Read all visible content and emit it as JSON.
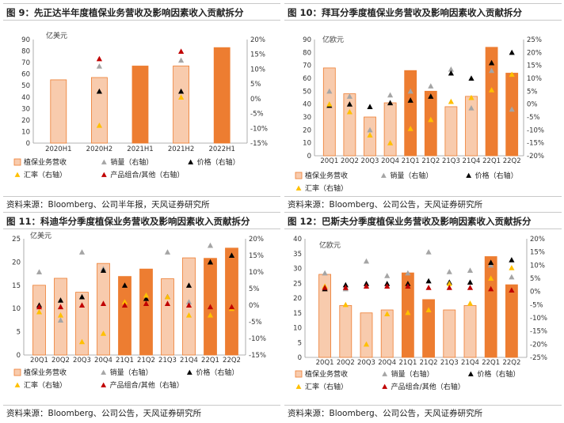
{
  "colors": {
    "light_bar": "#F8CBAD",
    "light_bar_stroke": "#ED7D31",
    "dark_bar": "#ED7D31",
    "volume": "#A5A5A5",
    "price": "#000000",
    "fx": "#FFC000",
    "mix": "#C00000"
  },
  "panels": [
    {
      "title": "图 9：先正达半年度植保业务营收及影响因素收入贡献拆分",
      "source": "资料来源：Bloomberg、公司半年报，天风证券研究所",
      "chart_data": {
        "type": "bar",
        "unit": "亿美元",
        "categories": [
          "2020H1",
          "2020H2",
          "2021H1",
          "2021H2",
          "2022H1"
        ],
        "values": [
          55,
          57,
          67,
          67,
          83
        ],
        "bar_shade": [
          "light",
          "light",
          "dark",
          "light",
          "dark"
        ],
        "ylim": [
          0,
          90
        ],
        "yticks": [
          "0",
          "10",
          "20",
          "30",
          "40",
          "50",
          "60",
          "70",
          "80",
          "90"
        ],
        "y2lim": [
          -15,
          20
        ],
        "y2ticks": [
          "-15%",
          "-10%",
          "-5%",
          "0%",
          "5%",
          "10%",
          "15%",
          "20%"
        ],
        "series": [
          {
            "key": "volume",
            "name": "销量（右轴）",
            "values": [
              null,
              11,
              null,
              13,
              null
            ]
          },
          {
            "key": "price",
            "name": "价格（右轴）",
            "values": [
              null,
              2.5,
              null,
              2.5,
              null
            ]
          },
          {
            "key": "fx",
            "name": "汇率（右轴）",
            "values": [
              null,
              -9,
              null,
              0.5,
              null
            ]
          },
          {
            "key": "mix",
            "name": "产品组合/其他（右轴）",
            "values": [
              null,
              13.5,
              null,
              16,
              null
            ]
          }
        ],
        "legend": [
          {
            "key": "bar",
            "name": "植保业务营收"
          },
          {
            "key": "volume",
            "name": "销量（右轴）"
          },
          {
            "key": "price",
            "name": "价格（右轴）"
          },
          {
            "key": "fx",
            "name": "汇率（右轴）"
          },
          {
            "key": "mix",
            "name": "产品组合/其他（右轴）"
          }
        ]
      }
    },
    {
      "title": "图 10：拜耳分季度植保业务营收及影响因素收入贡献拆分",
      "source": "资料来源：Bloomberg、公司公告，天风证券研究所",
      "chart_data": {
        "type": "bar",
        "unit": "亿欧元",
        "categories": [
          "20Q1",
          "20Q2",
          "20Q3",
          "20Q4",
          "21Q1",
          "21Q2",
          "21Q3",
          "21Q4",
          "22Q1",
          "22Q2"
        ],
        "values": [
          68,
          48,
          30,
          41,
          66,
          50,
          38,
          46,
          84,
          64
        ],
        "bar_shade": [
          "light",
          "light",
          "light",
          "light",
          "dark",
          "dark",
          "light",
          "light",
          "dark",
          "dark"
        ],
        "ylim": [
          0,
          90
        ],
        "yticks": [
          "0",
          "10",
          "20",
          "30",
          "40",
          "50",
          "60",
          "70",
          "80",
          "90"
        ],
        "y2lim": [
          -20,
          25
        ],
        "y2ticks": [
          "-20%",
          "-15%",
          "-10%",
          "-5%",
          "0%",
          "5%",
          "10%",
          "15%",
          "20%",
          "25%"
        ],
        "series": [
          {
            "key": "volume",
            "name": "销量（右轴）",
            "values": [
              5,
              3,
              -10,
              3.5,
              5,
              7,
              13.5,
              -1.5,
              13,
              -2
            ]
          },
          {
            "key": "price",
            "name": "价格（右轴）",
            "values": [
              -0.5,
              0,
              -1,
              0.5,
              1.5,
              3,
              12,
              10,
              16,
              20
            ]
          },
          {
            "key": "fx",
            "name": "汇率（右轴）",
            "values": [
              0,
              -3,
              -12,
              -15,
              -9.5,
              -6,
              1,
              2.5,
              5.5,
              11.5
            ]
          },
          {
            "key": "mix",
            "name": "产品组合/其他（右轴）",
            "values": [
              null,
              null,
              null,
              null,
              null,
              null,
              null,
              null,
              null,
              null
            ]
          }
        ],
        "legend": [
          {
            "key": "bar",
            "name": "植保业务营收"
          },
          {
            "key": "volume",
            "name": "销量（右轴）"
          },
          {
            "key": "price",
            "name": "价格（右轴）"
          },
          {
            "key": "fx",
            "name": "汇率（右轴）"
          }
        ]
      }
    },
    {
      "title": "图 11：科迪华分季度植保业务营收及影响因素收入贡献拆分",
      "source": "资料来源：Bloomberg、公司公告，天风证券研究所",
      "chart_data": {
        "type": "bar",
        "unit": "亿美元",
        "categories": [
          "20Q1",
          "20Q2",
          "20Q3",
          "20Q4",
          "21Q1",
          "21Q2",
          "21Q3",
          "21Q4",
          "22Q1",
          "22Q2"
        ],
        "values": [
          15,
          16.5,
          13.5,
          19.7,
          16.9,
          18.5,
          16.4,
          20.9,
          20.8,
          23
        ],
        "bar_shade": [
          "light",
          "light",
          "light",
          "light",
          "dark",
          "dark",
          "light",
          "light",
          "dark",
          "dark"
        ],
        "ylim": [
          0,
          25
        ],
        "yticks": [
          "0",
          "5",
          "10",
          "15",
          "20",
          "25"
        ],
        "y2lim": [
          -15,
          20
        ],
        "y2ticks": [
          "-15%",
          "-10%",
          "-5%",
          "0%",
          "5%",
          "10%",
          "15%",
          "20%"
        ],
        "series": [
          {
            "key": "volume",
            "name": "销量（右轴）",
            "values": [
              10,
              -4.5,
              16,
              11,
              null,
              3,
              16,
              1,
              18,
              null
            ]
          },
          {
            "key": "price",
            "name": "价格（右轴）",
            "values": [
              0,
              1.5,
              2.5,
              10.5,
              6,
              2,
              2.5,
              6,
              13,
              15
            ]
          },
          {
            "key": "fx",
            "name": "汇率（右轴）",
            "values": [
              -2,
              -3,
              -11,
              -8.5,
              1,
              3,
              2.5,
              -3,
              -3,
              -1
            ]
          },
          {
            "key": "mix",
            "name": "产品组合/其他（右轴）",
            "values": [
              -0.5,
              -0.5,
              0,
              0.5,
              0,
              0.5,
              0.5,
              0,
              -0.5,
              -0.5
            ]
          }
        ],
        "legend": [
          {
            "key": "bar",
            "name": "植保业务营收"
          },
          {
            "key": "volume",
            "name": "销量（右轴）"
          },
          {
            "key": "price",
            "name": "价格（右轴）"
          },
          {
            "key": "fx",
            "name": "汇率（右轴）"
          },
          {
            "key": "mix",
            "name": "产品组合/其他（右轴）"
          }
        ]
      }
    },
    {
      "title": "图 12：巴斯夫分季度植保业务营收及影响因素收入贡献拆分",
      "source": "资料来源：Bloomberg、公司公告，天风证券研究所",
      "chart_data": {
        "type": "bar",
        "unit": "亿欧元",
        "categories": [
          "20Q1",
          "20Q2",
          "20Q3",
          "20Q4",
          "21Q1",
          "21Q2",
          "21Q3",
          "21Q4",
          "22Q1",
          "22Q2"
        ],
        "values": [
          28,
          17.5,
          15,
          16,
          28.5,
          19.5,
          16,
          17.5,
          34,
          24.5
        ],
        "bar_shade": [
          "light",
          "light",
          "light",
          "light",
          "dark",
          "dark",
          "light",
          "light",
          "dark",
          "dark"
        ],
        "ylim": [
          0,
          40
        ],
        "yticks": [
          "0",
          "5",
          "10",
          "15",
          "20",
          "25",
          "30",
          "35",
          "40"
        ],
        "y2lim": [
          -25,
          20
        ],
        "y2ticks": [
          "-25%",
          "-20%",
          "-15%",
          "-10%",
          "-5%",
          "0%",
          "5%",
          "10%",
          "15%",
          "20%"
        ],
        "series": [
          {
            "key": "volume",
            "name": "销量（右轴）",
            "values": [
              7,
              1,
              11.5,
              6,
              7,
              15,
              7.5,
              8,
              10,
              5.5
            ]
          },
          {
            "key": "price",
            "name": "价格（右轴）",
            "values": [
              1,
              2.5,
              3,
              3,
              3,
              4,
              3.5,
              3.5,
              11,
              12
            ]
          },
          {
            "key": "fx",
            "name": "汇率（右轴）",
            "values": [
              2,
              -5,
              -20,
              -8.5,
              -8,
              -7,
              3,
              -4.5,
              5,
              9
            ]
          },
          {
            "key": "mix",
            "name": "产品组合/其他（右轴）",
            "values": [
              1.5,
              1.5,
              2,
              2,
              2,
              1.5,
              1.5,
              1.5,
              1,
              0.5
            ]
          }
        ],
        "legend": [
          {
            "key": "bar",
            "name": "植保业务营收"
          },
          {
            "key": "volume",
            "name": "销量（右轴）"
          },
          {
            "key": "price",
            "name": "价格（右轴）"
          },
          {
            "key": "fx",
            "name": "汇率（右轴）"
          },
          {
            "key": "mix",
            "name": "产品组合/其他（右轴）"
          }
        ]
      }
    }
  ]
}
